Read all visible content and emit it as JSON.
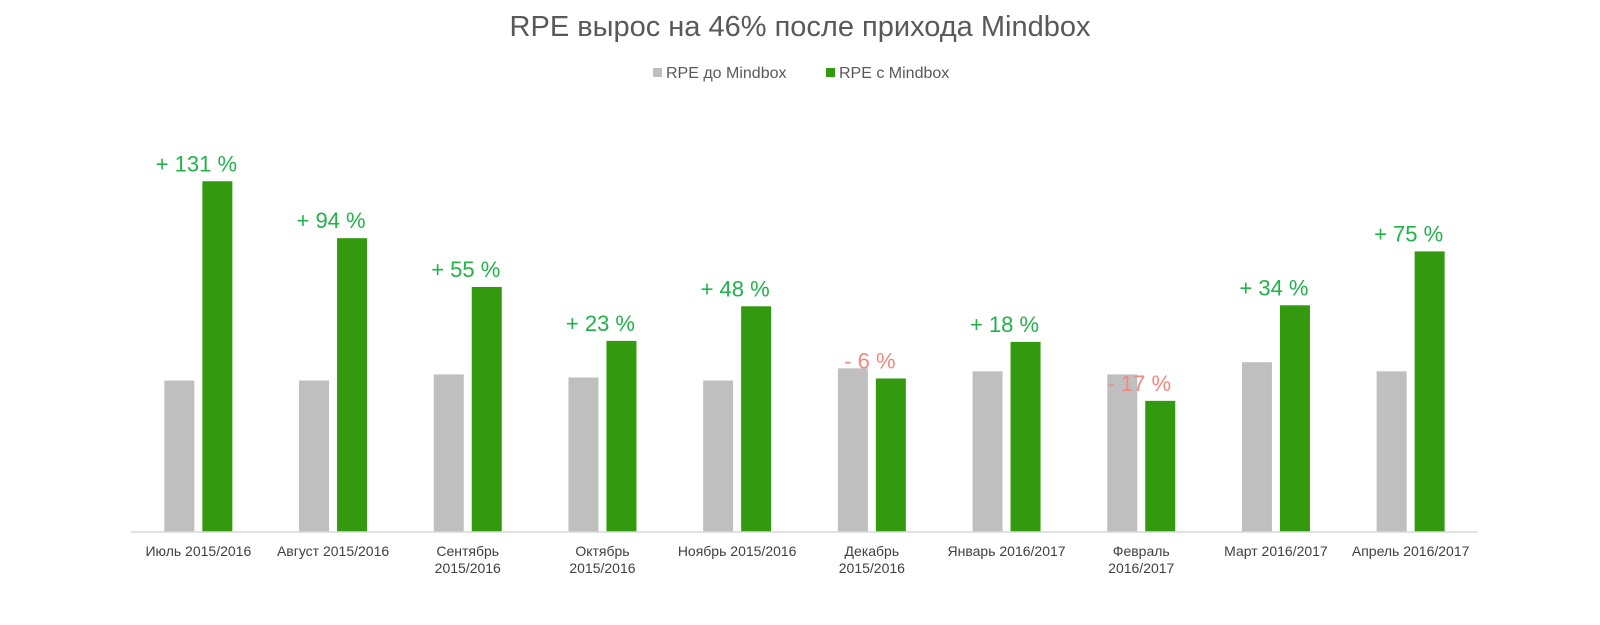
{
  "chart_data": {
    "type": "bar",
    "title": "RPE вырос на 46% после прихода Mindbox",
    "legend_position": "top",
    "grid": false,
    "categories": [
      [
        "Июль 2015/2016"
      ],
      [
        "Август 2015/2016"
      ],
      [
        "Сентябрь",
        "2015/2016"
      ],
      [
        "Октябрь",
        "2015/2016"
      ],
      [
        "Ноябрь 2015/2016"
      ],
      [
        "Декабрь",
        "2015/2016"
      ],
      [
        "Январь 2016/2017"
      ],
      [
        "Февраль",
        "2016/2017"
      ],
      [
        "Март 2016/2017"
      ],
      [
        "Апрель 2016/2017"
      ]
    ],
    "series": [
      {
        "name": "RPE до Mindbox",
        "color": "#bfbfbf",
        "values": [
          149,
          149,
          155,
          152,
          149,
          161,
          158,
          155,
          167,
          158
        ]
      },
      {
        "name": "RPE с Mindbox",
        "color": "#339a0f",
        "values": [
          345,
          289,
          241,
          188,
          222,
          151,
          187,
          129,
          223,
          276
        ]
      }
    ],
    "annotations": [
      {
        "text": "+ 131 %",
        "color": "#21b24a"
      },
      {
        "text": "+ 94 %",
        "color": "#21b24a"
      },
      {
        "text": "+ 55 %",
        "color": "#21b24a"
      },
      {
        "text": "+ 23 %",
        "color": "#21b24a"
      },
      {
        "text": "+ 48 %",
        "color": "#21b24a"
      },
      {
        "text": "- 6 %",
        "color": "#f4877f"
      },
      {
        "text": "+ 18 %",
        "color": "#21b24a"
      },
      {
        "text": "- 17 %",
        "color": "#f4877f"
      },
      {
        "text": "+ 34 %",
        "color": "#21b24a"
      },
      {
        "text": "+ 75 %",
        "color": "#21b24a"
      }
    ],
    "ylim": [
      0,
      360
    ]
  },
  "colors": {
    "axis": "#d9d9d9"
  }
}
